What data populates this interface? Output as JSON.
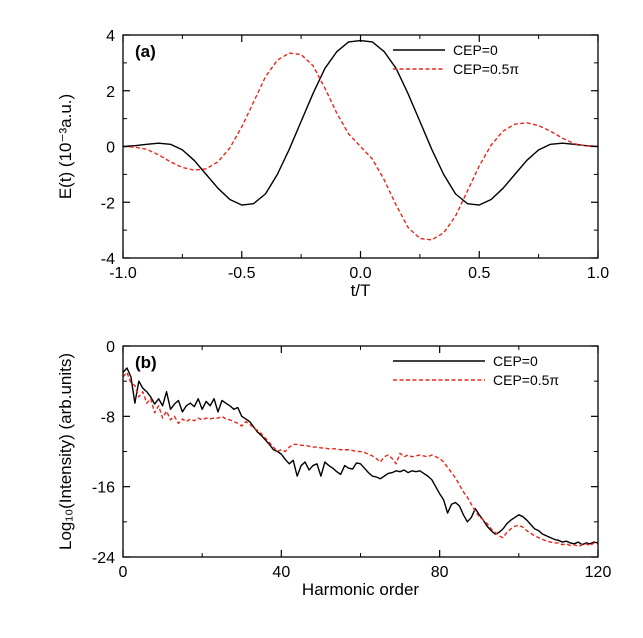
{
  "chart_data": [
    {
      "type": "line",
      "panel_label": "(a)",
      "xlabel": "t/T",
      "ylabel": "E(t) (10⁻³a.u.)",
      "xlim": [
        -1.0,
        1.0
      ],
      "ylim": [
        -4,
        4
      ],
      "xticks": [
        -1.0,
        -0.5,
        0.0,
        0.5,
        1.0
      ],
      "xtick_labels": [
        "-1.0",
        "-0.5",
        "0.0",
        "0.5",
        "1.0"
      ],
      "yticks": [
        -4,
        -2,
        0,
        2,
        4
      ],
      "ytick_labels": [
        "-4",
        "-2",
        "0",
        "2",
        "4"
      ],
      "grid": false,
      "legend_position": "top-right",
      "series": [
        {
          "name": "CEP=0",
          "color": "#000000",
          "dash": "solid",
          "x": [
            -1.0,
            -0.95,
            -0.9,
            -0.85,
            -0.8,
            -0.75,
            -0.7,
            -0.65,
            -0.6,
            -0.55,
            -0.5,
            -0.45,
            -0.4,
            -0.35,
            -0.3,
            -0.25,
            -0.2,
            -0.15,
            -0.1,
            -0.05,
            0.0,
            0.05,
            0.1,
            0.15,
            0.2,
            0.25,
            0.3,
            0.35,
            0.4,
            0.45,
            0.5,
            0.55,
            0.6,
            0.65,
            0.7,
            0.75,
            0.8,
            0.85,
            0.9,
            0.95,
            1.0
          ],
          "y": [
            0.0,
            0.03,
            0.08,
            0.12,
            0.08,
            -0.12,
            -0.5,
            -1.0,
            -1.5,
            -1.9,
            -2.1,
            -2.05,
            -1.7,
            -1.0,
            -0.1,
            0.9,
            1.9,
            2.8,
            3.4,
            3.75,
            3.8,
            3.75,
            3.4,
            2.8,
            1.9,
            0.9,
            -0.1,
            -1.0,
            -1.7,
            -2.05,
            -2.1,
            -1.9,
            -1.5,
            -1.0,
            -0.5,
            -0.12,
            0.08,
            0.12,
            0.08,
            0.03,
            0.0
          ]
        },
        {
          "name": "CEP=0.5π",
          "color": "#e8261a",
          "dash": "dashed",
          "x": [
            -1.0,
            -0.95,
            -0.9,
            -0.85,
            -0.8,
            -0.75,
            -0.7,
            -0.65,
            -0.6,
            -0.55,
            -0.5,
            -0.45,
            -0.4,
            -0.35,
            -0.3,
            -0.25,
            -0.2,
            -0.15,
            -0.1,
            -0.05,
            0.0,
            0.05,
            0.1,
            0.15,
            0.2,
            0.25,
            0.3,
            0.35,
            0.4,
            0.45,
            0.5,
            0.55,
            0.6,
            0.65,
            0.7,
            0.75,
            0.8,
            0.85,
            0.9,
            0.95,
            1.0
          ],
          "y": [
            0.0,
            -0.02,
            -0.1,
            -0.3,
            -0.55,
            -0.75,
            -0.85,
            -0.8,
            -0.55,
            -0.05,
            0.7,
            1.6,
            2.5,
            3.1,
            3.35,
            3.3,
            2.9,
            2.1,
            1.2,
            0.45,
            0.0,
            -0.45,
            -1.2,
            -2.1,
            -2.9,
            -3.3,
            -3.35,
            -3.1,
            -2.5,
            -1.6,
            -0.7,
            0.05,
            0.55,
            0.8,
            0.85,
            0.75,
            0.55,
            0.3,
            0.1,
            0.02,
            0.0
          ]
        }
      ]
    },
    {
      "type": "line",
      "panel_label": "(b)",
      "xlabel": "Harmonic order",
      "ylabel": "Log₁₀(Intensity) (arb.units)",
      "xlim": [
        0,
        120
      ],
      "ylim": [
        -24,
        0
      ],
      "xticks": [
        0,
        40,
        80,
        120
      ],
      "xtick_labels": [
        "0",
        "40",
        "80",
        "120"
      ],
      "yticks": [
        0,
        -8,
        -16,
        -24
      ],
      "ytick_labels": [
        "0",
        "-8",
        "-16",
        "-24"
      ],
      "grid": false,
      "legend_position": "top-right",
      "series": [
        {
          "name": "CEP=0",
          "color": "#000000",
          "dash": "solid",
          "x": [
            0,
            1,
            2,
            3,
            4,
            5,
            6,
            7,
            8,
            9,
            10,
            11,
            12,
            13,
            14,
            15,
            16,
            17,
            18,
            19,
            20,
            21,
            22,
            23,
            24,
            25,
            26,
            27,
            28,
            29,
            30,
            31,
            32,
            33,
            34,
            35,
            36,
            37,
            38,
            39,
            40,
            41,
            42,
            43,
            44,
            45,
            46,
            47,
            48,
            49,
            50,
            51,
            52,
            53,
            54,
            55,
            56,
            57,
            58,
            59,
            60,
            61,
            62,
            63,
            64,
            65,
            66,
            67,
            68,
            69,
            70,
            71,
            72,
            73,
            74,
            75,
            76,
            77,
            78,
            79,
            80,
            81,
            82,
            83,
            84,
            85,
            86,
            87,
            88,
            89,
            90,
            91,
            92,
            93,
            94,
            95,
            96,
            97,
            98,
            99,
            100,
            101,
            102,
            103,
            104,
            105,
            106,
            107,
            108,
            109,
            110,
            111,
            112,
            113,
            114,
            115,
            116,
            117,
            118,
            119,
            120
          ],
          "y": [
            -3,
            -2.5,
            -3.5,
            -6.5,
            -4,
            -4.8,
            -5.2,
            -5.8,
            -6.6,
            -6,
            -6.8,
            -5.2,
            -7.2,
            -6.6,
            -6.2,
            -7.5,
            -6.8,
            -6.5,
            -6.9,
            -6,
            -7.2,
            -6.3,
            -6.8,
            -6,
            -7.5,
            -6.2,
            -6.5,
            -6.8,
            -7.2,
            -7,
            -8,
            -8.3,
            -8.6,
            -9.2,
            -9.8,
            -10.2,
            -10.7,
            -11.2,
            -11.8,
            -12,
            -12.3,
            -12.9,
            -13.4,
            -13,
            -14.8,
            -13.6,
            -13.2,
            -14.1,
            -13.6,
            -13.4,
            -14.8,
            -13.2,
            -13.6,
            -13.9,
            -14.3,
            -14.6,
            -13.6,
            -13.9,
            -14,
            -13.3,
            -13.4,
            -13.9,
            -14.4,
            -14.8,
            -14.9,
            -15.1,
            -14.8,
            -14.5,
            -14.4,
            -14.2,
            -14.3,
            -14.1,
            -14.4,
            -14.2,
            -14.3,
            -14.2,
            -14.5,
            -14.8,
            -15.2,
            -16,
            -16.8,
            -17.5,
            -19,
            -18,
            -17.8,
            -18.2,
            -19.2,
            -20,
            -19.5,
            -18.5,
            -19.2,
            -19.8,
            -20.5,
            -21,
            -21.4,
            -21.2,
            -20.8,
            -20.2,
            -19.8,
            -19.5,
            -19.2,
            -19.4,
            -19.8,
            -20.3,
            -20.8,
            -21,
            -21.4,
            -21.6,
            -21.8,
            -22,
            -22.1,
            -22.3,
            -22.2,
            -22.4,
            -22.5,
            -22.3,
            -22.6,
            -22.4,
            -22.5,
            -22.3,
            -22.4
          ]
        },
        {
          "name": "CEP=0.5π",
          "color": "#e8261a",
          "dash": "dashed",
          "x": [
            0,
            1,
            2,
            3,
            4,
            5,
            6,
            7,
            8,
            9,
            10,
            11,
            12,
            13,
            14,
            15,
            16,
            17,
            18,
            19,
            20,
            21,
            22,
            23,
            24,
            25,
            26,
            27,
            28,
            29,
            30,
            31,
            32,
            33,
            34,
            35,
            36,
            37,
            38,
            39,
            40,
            41,
            42,
            43,
            44,
            45,
            46,
            47,
            48,
            49,
            50,
            51,
            52,
            53,
            54,
            55,
            56,
            57,
            58,
            59,
            60,
            61,
            62,
            63,
            64,
            65,
            66,
            67,
            68,
            69,
            70,
            71,
            72,
            73,
            74,
            75,
            76,
            77,
            78,
            79,
            80,
            81,
            82,
            83,
            84,
            85,
            86,
            87,
            88,
            89,
            90,
            91,
            92,
            93,
            94,
            95,
            96,
            97,
            98,
            99,
            100,
            101,
            102,
            103,
            104,
            105,
            106,
            107,
            108,
            109,
            110,
            111,
            112,
            113,
            114,
            115,
            116,
            117,
            118,
            119,
            120
          ],
          "y": [
            -3.5,
            -3,
            -4.2,
            -4.5,
            -5.8,
            -5.2,
            -6.5,
            -6,
            -7.6,
            -6.8,
            -8.2,
            -7.4,
            -8.4,
            -8,
            -8.8,
            -8.3,
            -8.6,
            -8.3,
            -8.5,
            -8.2,
            -8.4,
            -8.2,
            -8.3,
            -8.2,
            -8.2,
            -8,
            -8.3,
            -8.4,
            -8.6,
            -8.8,
            -9.1,
            -8.6,
            -8.9,
            -9.3,
            -9.6,
            -10,
            -10.5,
            -11,
            -11.5,
            -12,
            -11.8,
            -12,
            -11.5,
            -11.2,
            -11.2,
            -11.3,
            -11.3,
            -11.4,
            -11.5,
            -11.5,
            -11.6,
            -11.6,
            -11.7,
            -11.7,
            -11.7,
            -11.8,
            -11.8,
            -11.8,
            -11.9,
            -12,
            -12,
            -12.1,
            -12.3,
            -12.5,
            -12.8,
            -13.2,
            -12.6,
            -12.4,
            -12.8,
            -13.4,
            -12.2,
            -12.6,
            -12.4,
            -12.6,
            -12.5,
            -12.4,
            -12.5,
            -12.6,
            -12.4,
            -12.6,
            -12.8,
            -13.2,
            -13.8,
            -14.4,
            -15,
            -15.8,
            -16.6,
            -17.2,
            -18,
            -18.8,
            -19.4,
            -19.8,
            -20.2,
            -20.8,
            -21.2,
            -21.6,
            -21.8,
            -21.2,
            -20.8,
            -20.5,
            -20.4,
            -20.6,
            -21,
            -21.3,
            -21.6,
            -21.8,
            -22,
            -22.2,
            -22.3,
            -22.4,
            -22.4,
            -22.6,
            -22.5,
            -22.7,
            -22.6,
            -22.8,
            -22.6,
            -22.5,
            -22.7,
            -22.4,
            -22.5
          ]
        }
      ]
    }
  ]
}
